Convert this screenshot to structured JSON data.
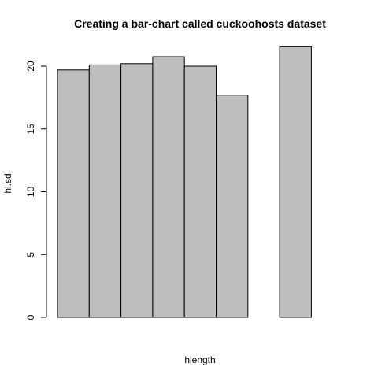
{
  "chart_data": {
    "type": "bar",
    "title": "Creating a bar-chart called cuckoohosts dataset",
    "xlabel": "hlength",
    "ylabel": "hl.sd",
    "ylim": [
      0,
      22
    ],
    "yticks": [
      0,
      5,
      10,
      15,
      20
    ],
    "bars": [
      {
        "slot": 1,
        "value": 19.7
      },
      {
        "slot": 2,
        "value": 20.1
      },
      {
        "slot": 3,
        "value": 20.2
      },
      {
        "slot": 4,
        "value": 20.75
      },
      {
        "slot": 5,
        "value": 20.0
      },
      {
        "slot": 6,
        "value": 17.7
      },
      {
        "slot": 8,
        "value": 21.55
      }
    ],
    "grid": false,
    "legend": "none"
  }
}
